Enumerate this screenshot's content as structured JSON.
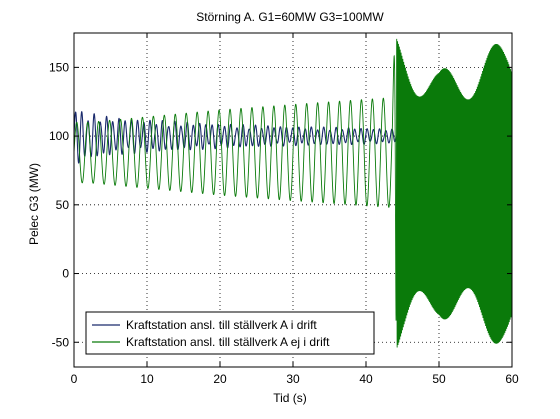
{
  "chart_data": {
    "type": "line",
    "title": "Störning A. G1=60MW G3=100MW",
    "xlabel": "Tid (s)",
    "ylabel": "Pelec G3 (MW)",
    "xlim": [
      0,
      60
    ],
    "ylim": [
      -68,
      175
    ],
    "grid": true,
    "legend_placement": "bottom-left",
    "x_ticks": [
      0,
      10,
      20,
      30,
      40,
      50,
      60
    ],
    "y_ticks": [
      -50,
      0,
      50,
      100,
      150
    ],
    "x_tick_labels": [
      "0",
      "10",
      "20",
      "30",
      "40",
      "50",
      "60"
    ],
    "y_tick_labels": [
      "-50",
      "0",
      "50",
      "100",
      "150"
    ],
    "series": [
      {
        "name": "Kraftstation ansl. till ställverk A i drift",
        "color": "#1a2a6c",
        "style": "damped-oscillation",
        "center": 100,
        "envelope_x": [
          0,
          1,
          5,
          10,
          20,
          30,
          40,
          44,
          50,
          55,
          60
        ],
        "envelope_amp": [
          25,
          18,
          14,
          12,
          9,
          7,
          6,
          5,
          4,
          3,
          3
        ],
        "period_s": 0.85
      },
      {
        "name": "Kraftstation ansl. till ställverk A ej i drift",
        "color": "#0a7a0a",
        "style": "growing-oscillation",
        "center_x": [
          0,
          44,
          44.2,
          60
        ],
        "center_y": [
          88,
          88,
          58,
          58
        ],
        "envelope_x": [
          0,
          2,
          10,
          20,
          30,
          38,
          43.6,
          44.2,
          45,
          50,
          55,
          58,
          59.5,
          60
        ],
        "envelope_amp": [
          22,
          22,
          26,
          31,
          35,
          38,
          40,
          115,
          110,
          90,
          100,
          110,
          115,
          115
        ],
        "period_s": [
          1.5,
          1.5,
          1.5,
          1.5,
          1.5,
          1.5,
          1.5,
          0.12,
          0.12,
          0.12,
          0.12,
          0.12,
          0.12,
          0.12
        ]
      }
    ]
  }
}
